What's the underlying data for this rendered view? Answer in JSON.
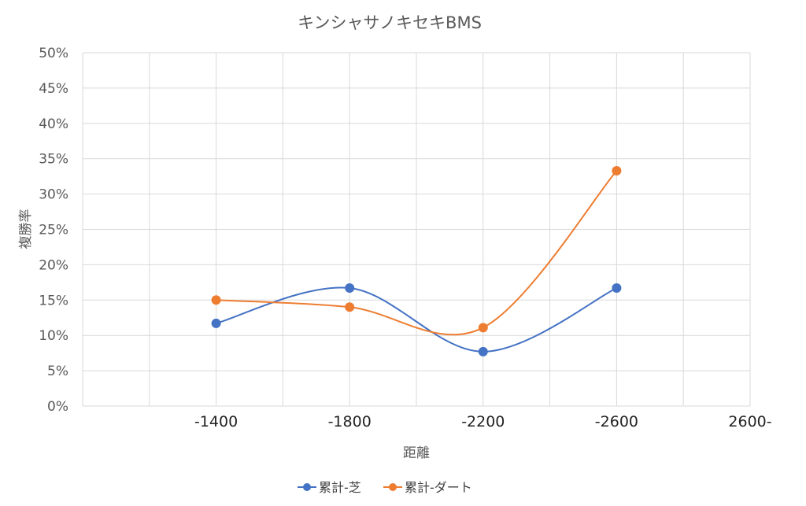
{
  "chart_data": {
    "type": "line",
    "title": "キンシャサノキセキBMS",
    "xlabel": "距離",
    "ylabel": "複勝率",
    "categories": [
      "-1400",
      "-1800",
      "-2200",
      "-2600",
      "2600-"
    ],
    "y_ticks": [
      "0%",
      "5%",
      "10%",
      "15%",
      "20%",
      "25%",
      "30%",
      "35%",
      "40%",
      "45%",
      "50%"
    ],
    "ylim": [
      0,
      0.5
    ],
    "grid": true,
    "smooth": true,
    "legend_position": "bottom",
    "series": [
      {
        "name": "累計-芝",
        "color": "#4472C4",
        "values": [
          0.117,
          0.167,
          0.077,
          0.167,
          null
        ]
      },
      {
        "name": "累計-ダート",
        "color": "#ED7D31",
        "values": [
          0.15,
          0.14,
          0.111,
          0.333,
          null
        ]
      }
    ]
  }
}
